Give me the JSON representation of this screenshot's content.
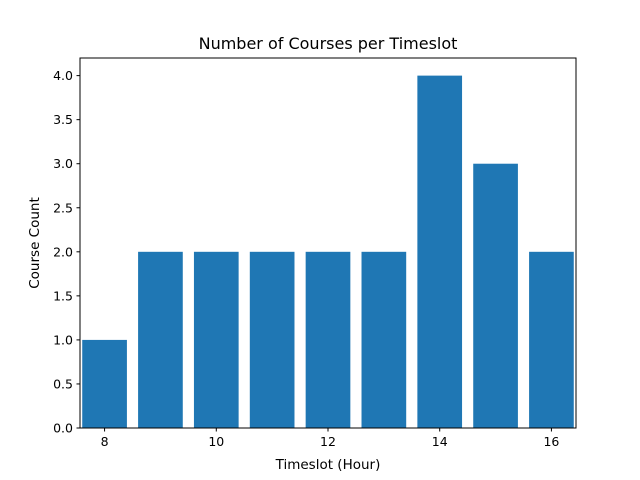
{
  "chart_data": {
    "type": "bar",
    "title": "Number of Courses per Timeslot",
    "xlabel": "Timeslot (Hour)",
    "ylabel": "Course Count",
    "x": [
      8,
      9,
      10,
      11,
      12,
      13,
      14,
      15,
      16
    ],
    "values": [
      1,
      2,
      2,
      2,
      2,
      2,
      4,
      3,
      2
    ],
    "bar_width": 0.8,
    "xlim": [
      7.56,
      16.44
    ],
    "ylim": [
      0,
      4.2
    ],
    "xticks": [
      8,
      10,
      12,
      14,
      16
    ],
    "yticks": [
      0.0,
      0.5,
      1.0,
      1.5,
      2.0,
      2.5,
      3.0,
      3.5,
      4.0
    ],
    "ytick_labels": [
      "0.0",
      "0.5",
      "1.0",
      "1.5",
      "2.0",
      "2.5",
      "3.0",
      "3.5",
      "4.0"
    ],
    "xtick_labels": [
      "8",
      "10",
      "12",
      "14",
      "16"
    ],
    "grid": false,
    "legend": "none",
    "bar_color": "#1f77b4"
  }
}
